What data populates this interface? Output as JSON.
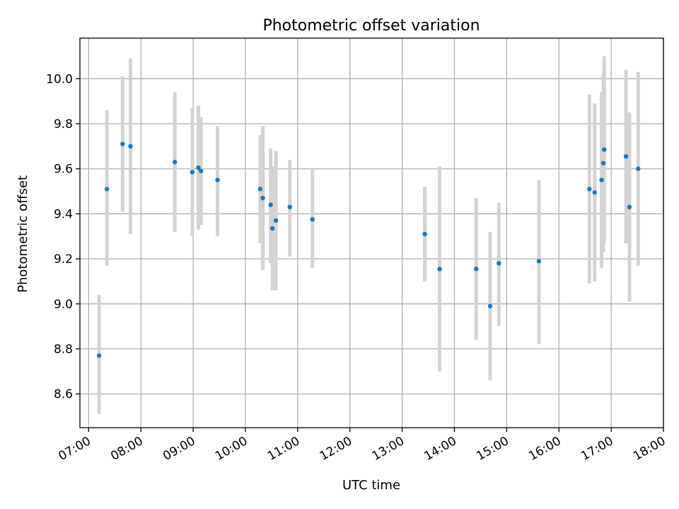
{
  "chart_data": {
    "type": "scatter",
    "title": "Photometric offset variation",
    "xlabel": "UTC time",
    "ylabel": "Photometric offset",
    "xlim": [
      "06:50",
      "18:00"
    ],
    "ylim": [
      8.45,
      10.18
    ],
    "grid": true,
    "x_ticks": [
      "07:00",
      "08:00",
      "09:00",
      "10:00",
      "11:00",
      "12:00",
      "13:00",
      "14:00",
      "15:00",
      "16:00",
      "17:00",
      "18:00"
    ],
    "y_ticks": [
      "8.6",
      "8.8",
      "9.0",
      "9.2",
      "9.4",
      "9.6",
      "9.8",
      "10.0"
    ],
    "point_color": "#1f77b4",
    "errorbar_color": "#d3d3d3",
    "series": [
      {
        "points": [
          {
            "x": "07:12",
            "y": 8.77,
            "ylow": 8.51,
            "yhigh": 9.04
          },
          {
            "x": "07:21",
            "y": 9.51,
            "ylow": 9.17,
            "yhigh": 9.86
          },
          {
            "x": "07:39",
            "y": 9.71,
            "ylow": 9.41,
            "yhigh": 10.01
          },
          {
            "x": "07:48",
            "y": 9.7,
            "ylow": 9.31,
            "yhigh": 10.09
          },
          {
            "x": "08:39",
            "y": 9.63,
            "ylow": 9.32,
            "yhigh": 9.94
          },
          {
            "x": "08:59",
            "y": 9.585,
            "ylow": 9.3,
            "yhigh": 9.87
          },
          {
            "x": "09:06",
            "y": 9.605,
            "ylow": 9.33,
            "yhigh": 9.88
          },
          {
            "x": "09:09",
            "y": 9.59,
            "ylow": 9.35,
            "yhigh": 9.83
          },
          {
            "x": "09:28",
            "y": 9.55,
            "ylow": 9.3,
            "yhigh": 9.79
          },
          {
            "x": "10:17",
            "y": 9.51,
            "ylow": 9.27,
            "yhigh": 9.75
          },
          {
            "x": "10:20",
            "y": 9.47,
            "ylow": 9.15,
            "yhigh": 9.79
          },
          {
            "x": "10:29",
            "y": 9.44,
            "ylow": 9.18,
            "yhigh": 9.69
          },
          {
            "x": "10:31",
            "y": 9.335,
            "ylow": 9.06,
            "yhigh": 9.61
          },
          {
            "x": "10:35",
            "y": 9.37,
            "ylow": 9.06,
            "yhigh": 9.68
          },
          {
            "x": "10:51",
            "y": 9.43,
            "ylow": 9.21,
            "yhigh": 9.64
          },
          {
            "x": "11:17",
            "y": 9.375,
            "ylow": 9.16,
            "yhigh": 9.6
          },
          {
            "x": "13:26",
            "y": 9.31,
            "ylow": 9.1,
            "yhigh": 9.52
          },
          {
            "x": "13:43",
            "y": 9.155,
            "ylow": 8.7,
            "yhigh": 9.61
          },
          {
            "x": "14:25",
            "y": 9.155,
            "ylow": 8.84,
            "yhigh": 9.47
          },
          {
            "x": "14:41",
            "y": 8.99,
            "ylow": 8.66,
            "yhigh": 9.32
          },
          {
            "x": "14:51",
            "y": 9.18,
            "ylow": 8.9,
            "yhigh": 9.45
          },
          {
            "x": "15:37",
            "y": 9.19,
            "ylow": 8.82,
            "yhigh": 9.55
          },
          {
            "x": "16:35",
            "y": 9.51,
            "ylow": 9.09,
            "yhigh": 9.93
          },
          {
            "x": "16:41",
            "y": 9.495,
            "ylow": 9.1,
            "yhigh": 9.89
          },
          {
            "x": "16:49",
            "y": 9.55,
            "ylow": 9.16,
            "yhigh": 9.94
          },
          {
            "x": "16:51",
            "y": 9.625,
            "ylow": 9.23,
            "yhigh": 10.02
          },
          {
            "x": "16:52",
            "y": 9.685,
            "ylow": 9.27,
            "yhigh": 10.1
          },
          {
            "x": "17:17",
            "y": 9.655,
            "ylow": 9.27,
            "yhigh": 10.04
          },
          {
            "x": "17:21",
            "y": 9.43,
            "ylow": 9.01,
            "yhigh": 9.85
          },
          {
            "x": "17:31",
            "y": 9.6,
            "ylow": 9.17,
            "yhigh": 10.03
          }
        ]
      }
    ]
  }
}
